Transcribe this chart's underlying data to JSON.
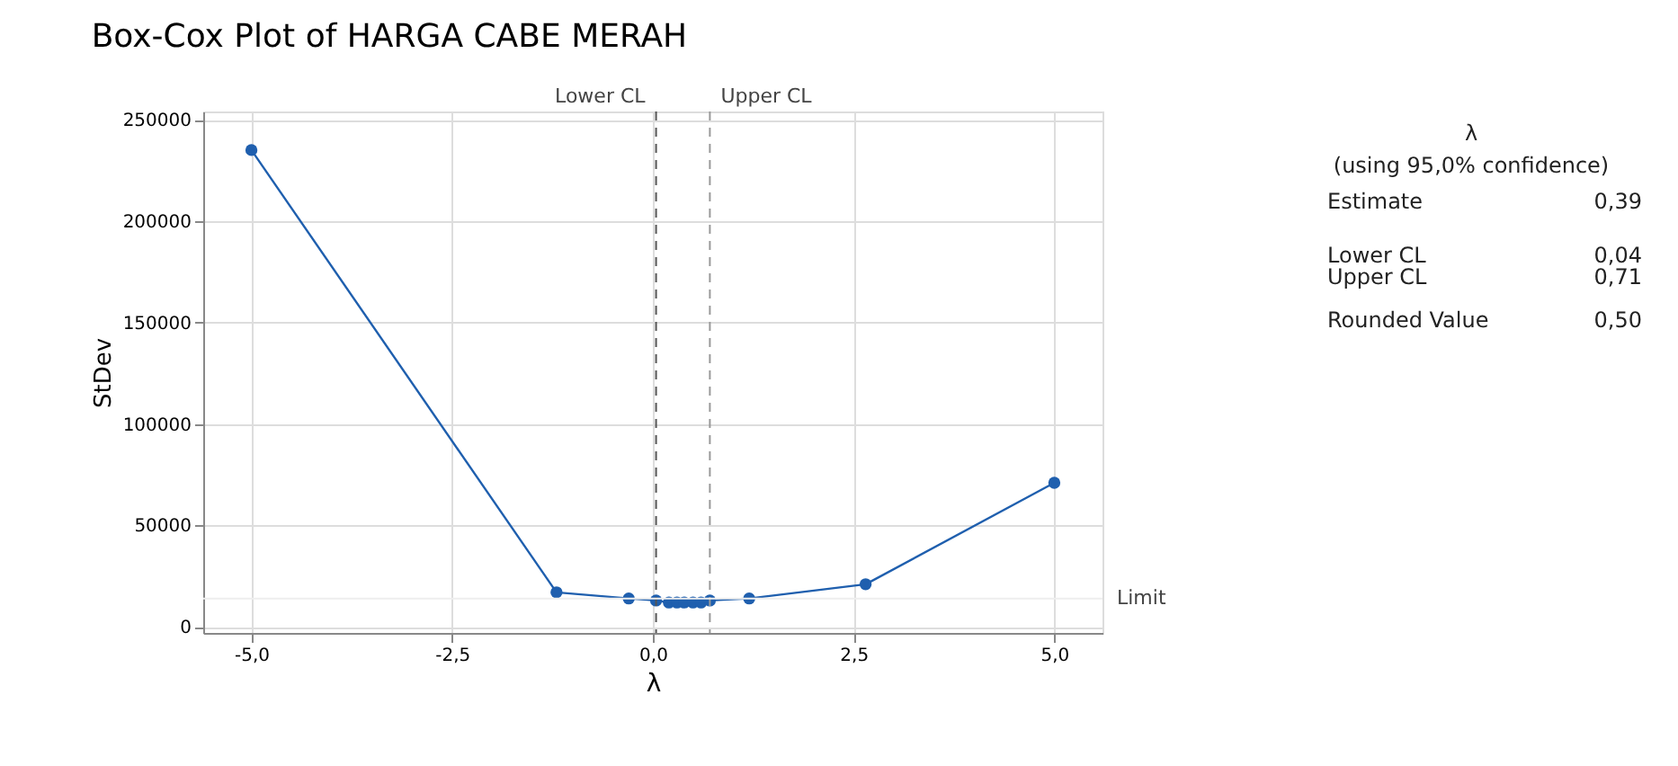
{
  "chart_data": {
    "type": "line",
    "title": "Box-Cox Plot of HARGA CABE MERAH",
    "xlabel": "λ",
    "ylabel": "StDev",
    "x": [
      -5,
      -1.2,
      -0.3,
      0.04,
      0.2,
      0.3,
      0.39,
      0.5,
      0.6,
      0.71,
      1.2,
      2.65,
      5
    ],
    "series": [
      {
        "color": "#1f5fae",
        "values": [
          235000,
          17000,
          14000,
          13000,
          12000,
          12000,
          12000,
          12000,
          12000,
          13000,
          14000,
          21000,
          71000
        ]
      }
    ],
    "xlim": [
      -5.6,
      5.6
    ],
    "xticks": [
      {
        "value": -5,
        "label": "-5,0"
      },
      {
        "value": -2.5,
        "label": "-2,5"
      },
      {
        "value": 0,
        "label": "0,0"
      },
      {
        "value": 2.5,
        "label": "2,5"
      },
      {
        "value": 5,
        "label": "5,0"
      }
    ],
    "ylim": [
      -3000,
      254000
    ],
    "yticks": [
      0,
      50000,
      100000,
      150000,
      200000,
      250000
    ],
    "ref_lines": [
      {
        "axis": "x",
        "value": 0.04,
        "label": "Lower CL",
        "color": "#555555",
        "line_style": "dashed"
      },
      {
        "axis": "x",
        "value": 0.71,
        "label": "Upper CL",
        "color": "#999999",
        "line_style": "dashed"
      },
      {
        "axis": "y",
        "value": 14000,
        "label": "Limit",
        "color": "#eeeeee",
        "line_style": "solid"
      }
    ],
    "annotations": [
      "λ",
      "(using 95,0% confidence)",
      "Estimate",
      "0,39",
      "Lower CL",
      "0,04",
      "Upper CL",
      "0,71",
      "Rounded Value",
      "0,50"
    ],
    "grid": true,
    "marker": "circle",
    "line_style": "solid"
  }
}
